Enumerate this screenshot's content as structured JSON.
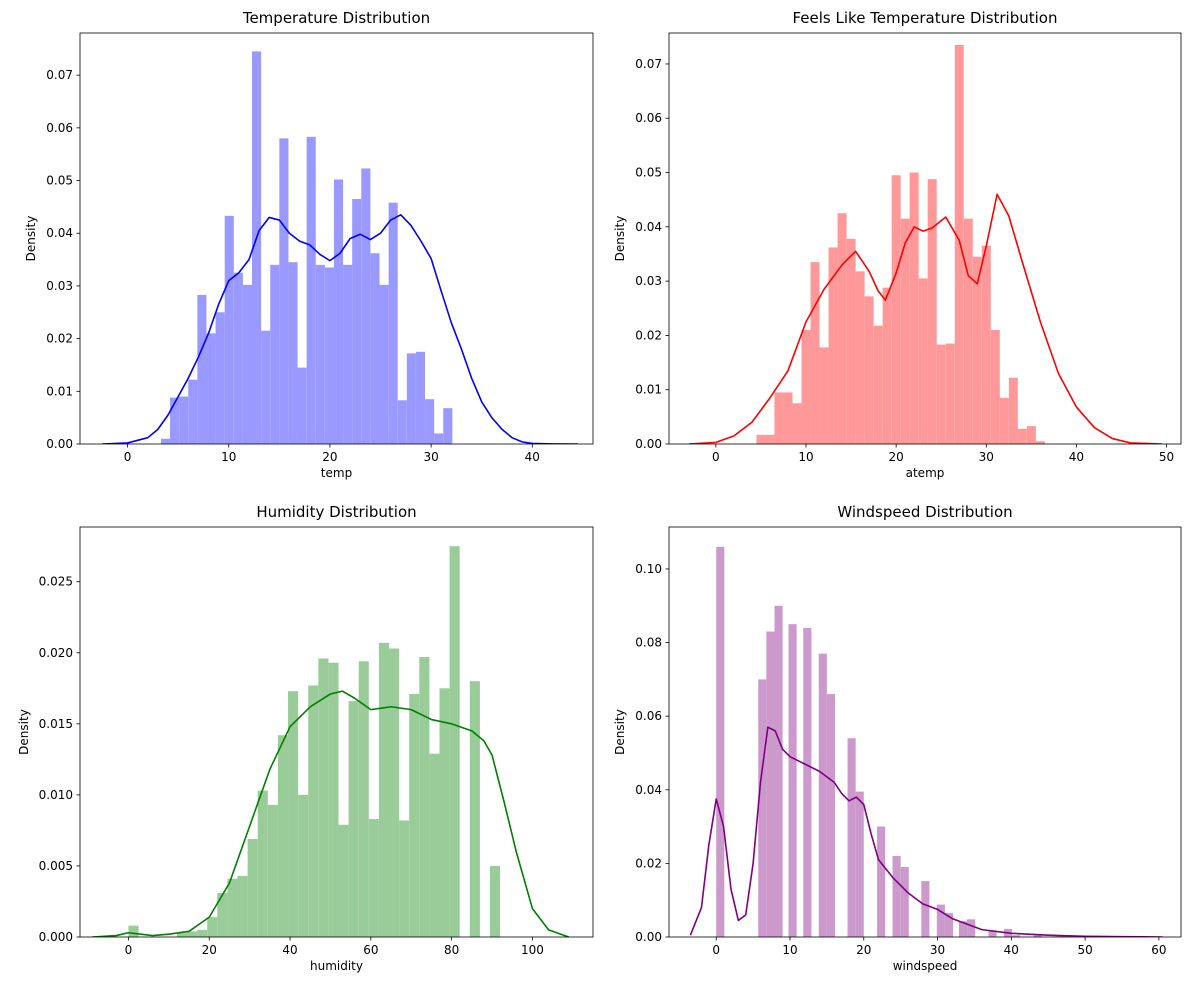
{
  "figure": {
    "panels": 4,
    "layout": "2x2"
  },
  "chart_data": [
    {
      "type": "bar",
      "subtype": "histogram+kde",
      "title": "Temperature Distribution",
      "xlabel": "temp",
      "ylabel": "Density",
      "xlim": [
        -4.7,
        46.0
      ],
      "ylim": [
        0,
        0.078
      ],
      "xticks": [
        0,
        10,
        20,
        30,
        40
      ],
      "xtick_labels": [
        "0",
        "10",
        "20",
        "30",
        "40"
      ],
      "yticks": [
        0,
        0.01,
        0.02,
        0.03,
        0.04,
        0.05,
        0.06,
        0.07
      ],
      "ytick_labels": [
        "0.00",
        "0.01",
        "0.02",
        "0.03",
        "0.04",
        "0.05",
        "0.06",
        "0.07"
      ],
      "color": "#0000ff",
      "bar_color": "#9999ff",
      "bins": {
        "start": 3.3,
        "width": 0.9,
        "values": [
          0.001,
          0.0088,
          0.009,
          0.0122,
          0.0283,
          0.021,
          0.025,
          0.0433,
          0.0325,
          0.0302,
          0.0745,
          0.0215,
          0.034,
          0.058,
          0.0345,
          0.0145,
          0.0583,
          0.034,
          0.0335,
          0.0502,
          0.034,
          0.0465,
          0.0523,
          0.0362,
          0.0302,
          0.0458,
          0.0083,
          0.0172,
          0.0175,
          0.0085,
          0.002,
          0.0068
        ]
      },
      "kde": {
        "x": [
          -2.5,
          0,
          2,
          3,
          4,
          5,
          6,
          7,
          8,
          9,
          10,
          11,
          12,
          13,
          14,
          15,
          16,
          17,
          18,
          19,
          20,
          21,
          22,
          23,
          24,
          25,
          26,
          27,
          28,
          29,
          30,
          31,
          32,
          33,
          34,
          35,
          36,
          37,
          38,
          39,
          40,
          42,
          44.5
        ],
        "y": [
          0,
          0.0002,
          0.0012,
          0.0028,
          0.0055,
          0.009,
          0.0125,
          0.0165,
          0.021,
          0.0265,
          0.031,
          0.0325,
          0.035,
          0.0405,
          0.043,
          0.0425,
          0.04,
          0.0385,
          0.0378,
          0.036,
          0.0348,
          0.0362,
          0.039,
          0.0398,
          0.0388,
          0.04,
          0.0425,
          0.0435,
          0.0415,
          0.0385,
          0.0352,
          0.029,
          0.023,
          0.018,
          0.0125,
          0.008,
          0.005,
          0.0028,
          0.0012,
          0.0004,
          0.0001,
          2e-05,
          0
        ]
      }
    },
    {
      "type": "bar",
      "subtype": "histogram+kde",
      "title": "Feels Like Temperature Distribution",
      "xlabel": "atemp",
      "ylabel": "Density",
      "xlim": [
        -5.2,
        51.6
      ],
      "ylim": [
        0,
        0.0757
      ],
      "xticks": [
        0,
        10,
        20,
        30,
        40,
        50
      ],
      "xtick_labels": [
        "0",
        "10",
        "20",
        "30",
        "40",
        "50"
      ],
      "yticks": [
        0,
        0.01,
        0.02,
        0.03,
        0.04,
        0.05,
        0.06,
        0.07
      ],
      "ytick_labels": [
        "0.00",
        "0.01",
        "0.02",
        "0.03",
        "0.04",
        "0.05",
        "0.06",
        "0.07"
      ],
      "color": "#ff0000",
      "bar_color": "#ff9999",
      "bins": {
        "start": 4.5,
        "width": 1.0,
        "values": [
          0.0017,
          0.0017,
          0.0095,
          0.0095,
          0.0075,
          0.021,
          0.0335,
          0.0178,
          0.0362,
          0.0425,
          0.0378,
          0.0318,
          0.0272,
          0.0218,
          0.0288,
          0.0495,
          0.0415,
          0.05,
          0.0305,
          0.0488,
          0.0183,
          0.0185,
          0.0735,
          0.0415,
          0.0345,
          0.0365,
          0.021,
          0.0085,
          0.0122,
          0.0028,
          0.0033,
          0.0005
        ]
      },
      "kde": {
        "x": [
          -3,
          0,
          2,
          4,
          6,
          8,
          10,
          12,
          14,
          15.5,
          17,
          18,
          18.8,
          20,
          21,
          22,
          23,
          24,
          25.5,
          27,
          28,
          29,
          30,
          31.2,
          32.5,
          34,
          36,
          38,
          40,
          42,
          44,
          46,
          49.5
        ],
        "y": [
          0,
          0.0003,
          0.0015,
          0.004,
          0.0085,
          0.0135,
          0.0225,
          0.0285,
          0.033,
          0.0355,
          0.0318,
          0.0282,
          0.0265,
          0.0315,
          0.037,
          0.04,
          0.0392,
          0.0398,
          0.0418,
          0.0375,
          0.031,
          0.0295,
          0.0365,
          0.046,
          0.042,
          0.0335,
          0.0225,
          0.013,
          0.0068,
          0.003,
          0.001,
          0.0002,
          0
        ]
      }
    },
    {
      "type": "bar",
      "subtype": "histogram+kde",
      "title": "Humidity Distribution",
      "xlabel": "humidity",
      "ylabel": "Density",
      "xlim": [
        -12.0,
        115.0
      ],
      "ylim": [
        0,
        0.02885
      ],
      "xticks": [
        0,
        20,
        40,
        60,
        80,
        100
      ],
      "xtick_labels": [
        "0",
        "20",
        "40",
        "60",
        "80",
        "100"
      ],
      "yticks": [
        0,
        0.005,
        0.01,
        0.015,
        0.02,
        0.025
      ],
      "ytick_labels": [
        "0.000",
        "0.005",
        "0.010",
        "0.015",
        "0.020",
        "0.025"
      ],
      "color": "#008000",
      "bar_color": "#99cc99",
      "bins": {
        "start": 12.0,
        "width": 2.5,
        "values": [
          0.0003,
          0.0004,
          0.0005,
          0.0014,
          0.0031,
          0.0041,
          0.0043,
          0.0069,
          0.0103,
          0.0093,
          0.0142,
          0.0173,
          0.01,
          0.0177,
          0.0196,
          0.0193,
          0.0079,
          0.0166,
          0.0194,
          0.0083,
          0.0207,
          0.0203,
          0.0082,
          0.0171,
          0.0197,
          0.0129,
          0.0175,
          0.0275,
          0.0,
          0.018,
          0.0,
          0.005
        ],
        "extra": [
          {
            "x0": 0,
            "x1": 2.5,
            "value": 0.0008
          }
        ]
      },
      "kde": {
        "x": [
          -9,
          -3,
          0,
          3,
          6,
          10,
          15,
          20,
          25,
          30,
          35,
          40,
          45,
          50,
          53,
          56,
          60,
          65,
          70,
          75,
          80,
          85,
          88,
          90,
          93,
          96,
          100,
          104,
          109
        ],
        "y": [
          0,
          0.0001,
          0.0003,
          0.0002,
          0.0001,
          0.0002,
          0.0004,
          0.0014,
          0.0038,
          0.0078,
          0.0118,
          0.0148,
          0.0162,
          0.0171,
          0.0173,
          0.0168,
          0.016,
          0.0162,
          0.016,
          0.0153,
          0.015,
          0.0145,
          0.0138,
          0.0128,
          0.0095,
          0.006,
          0.002,
          0.0005,
          0
        ]
      }
    },
    {
      "type": "bar",
      "subtype": "histogram+kde",
      "title": "Windspeed Distribution",
      "xlabel": "windspeed",
      "ylabel": "Density",
      "xlim": [
        -6.4,
        63.0
      ],
      "ylim": [
        0,
        0.1114
      ],
      "xticks": [
        0,
        10,
        20,
        30,
        40,
        50,
        60
      ],
      "xtick_labels": [
        "0",
        "10",
        "20",
        "30",
        "40",
        "50",
        "60"
      ],
      "yticks": [
        0,
        0.02,
        0.04,
        0.06,
        0.08,
        0.1
      ],
      "ytick_labels": [
        "0.00",
        "0.02",
        "0.04",
        "0.06",
        "0.08",
        "0.10"
      ],
      "color": "#800080",
      "bar_color": "#cc99cc",
      "bars": [
        {
          "x0": 0.0,
          "x1": 1.1,
          "value": 0.106
        },
        {
          "x0": 5.7,
          "x1": 6.8,
          "value": 0.07
        },
        {
          "x0": 6.8,
          "x1": 7.9,
          "value": 0.083
        },
        {
          "x0": 7.9,
          "x1": 9.0,
          "value": 0.09
        },
        {
          "x0": 9.8,
          "x1": 10.9,
          "value": 0.085
        },
        {
          "x0": 11.8,
          "x1": 12.9,
          "value": 0.084
        },
        {
          "x0": 13.9,
          "x1": 15.0,
          "value": 0.077
        },
        {
          "x0": 15.0,
          "x1": 16.1,
          "value": 0.066
        },
        {
          "x0": 17.8,
          "x1": 18.9,
          "value": 0.054
        },
        {
          "x0": 18.9,
          "x1": 20.0,
          "value": 0.0395
        },
        {
          "x0": 21.8,
          "x1": 22.9,
          "value": 0.03
        },
        {
          "x0": 23.9,
          "x1": 25.0,
          "value": 0.022
        },
        {
          "x0": 25.0,
          "x1": 26.1,
          "value": 0.019
        },
        {
          "x0": 27.8,
          "x1": 28.9,
          "value": 0.0152
        },
        {
          "x0": 29.9,
          "x1": 31.0,
          "value": 0.0088
        },
        {
          "x0": 31.0,
          "x1": 32.1,
          "value": 0.0065
        },
        {
          "x0": 32.9,
          "x1": 34.0,
          "value": 0.0043
        },
        {
          "x0": 34.0,
          "x1": 35.1,
          "value": 0.0048
        },
        {
          "x0": 36.9,
          "x1": 38.0,
          "value": 0.0018
        },
        {
          "x0": 39.0,
          "x1": 40.1,
          "value": 0.0022
        },
        {
          "x0": 40.1,
          "x1": 41.2,
          "value": 0.0005
        },
        {
          "x0": 43.0,
          "x1": 44.1,
          "value": 0.0004
        },
        {
          "x0": 46.0,
          "x1": 47.1,
          "value": 0.0002
        },
        {
          "x0": 50.0,
          "x1": 51.1,
          "value": 0.0001
        },
        {
          "x0": 56.0,
          "x1": 57.1,
          "value": 0.0001
        }
      ],
      "kde": {
        "x": [
          -3.5,
          -2,
          -1,
          0,
          1,
          2,
          3,
          4,
          5,
          6,
          7,
          8,
          9,
          10,
          12,
          14,
          16,
          17,
          18,
          19,
          20,
          21,
          22,
          24,
          26,
          28,
          30,
          32,
          34,
          36,
          40,
          45,
          50,
          55,
          60.5
        ],
        "y": [
          0.0005,
          0.008,
          0.025,
          0.0375,
          0.03,
          0.013,
          0.0045,
          0.006,
          0.02,
          0.042,
          0.057,
          0.056,
          0.051,
          0.049,
          0.047,
          0.045,
          0.042,
          0.039,
          0.037,
          0.038,
          0.036,
          0.028,
          0.021,
          0.016,
          0.012,
          0.009,
          0.0075,
          0.005,
          0.0035,
          0.002,
          0.001,
          0.0005,
          0.0002,
          0.0001,
          0
        ]
      }
    }
  ]
}
